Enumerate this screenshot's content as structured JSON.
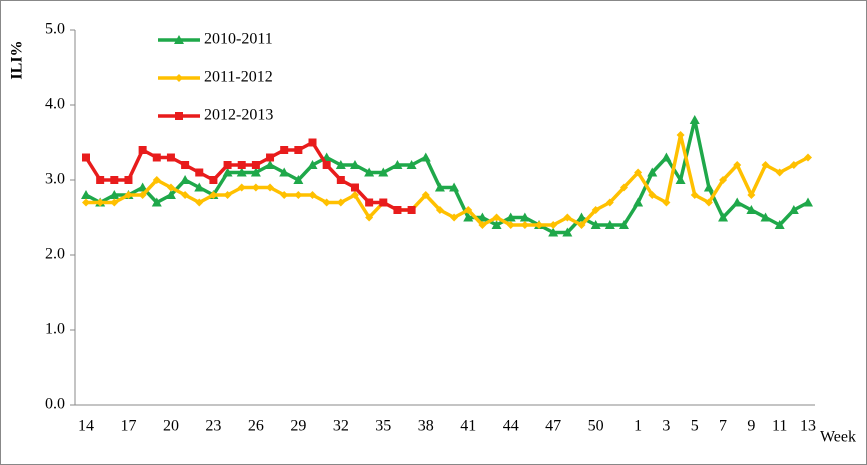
{
  "chart_data": {
    "type": "line",
    "y_label": "ILI%",
    "x_label": "Week",
    "categories": [
      "14",
      null,
      null,
      "17",
      null,
      null,
      "20",
      null,
      null,
      "23",
      null,
      null,
      "26",
      null,
      null,
      "29",
      null,
      null,
      "32",
      null,
      null,
      "35",
      null,
      null,
      "38",
      null,
      null,
      "41",
      null,
      null,
      "44",
      null,
      null,
      "47",
      null,
      null,
      "50",
      null,
      null,
      "1",
      null,
      "3",
      null,
      "5",
      null,
      "7",
      null,
      "9",
      null,
      "11",
      null,
      "13"
    ],
    "ylim": [
      0,
      5
    ],
    "yticks": [
      {
        "value": 0,
        "label": "0.0"
      },
      {
        "value": 1,
        "label": "1.0"
      },
      {
        "value": 2,
        "label": "2.0"
      },
      {
        "value": 3,
        "label": "3.0"
      },
      {
        "value": 4,
        "label": "4.0"
      },
      {
        "value": 5,
        "label": "5.0"
      }
    ],
    "series": [
      {
        "name": "2010-2011",
        "color": "#1fa84a",
        "marker": "triangle",
        "values": [
          2.8,
          2.7,
          2.8,
          2.8,
          2.9,
          2.7,
          2.8,
          3.0,
          2.9,
          2.8,
          3.1,
          3.1,
          3.1,
          3.2,
          3.1,
          3.0,
          3.2,
          3.3,
          3.2,
          3.2,
          3.1,
          3.1,
          3.2,
          3.2,
          3.3,
          2.9,
          2.9,
          2.5,
          2.5,
          2.4,
          2.5,
          2.5,
          2.4,
          2.3,
          2.3,
          2.5,
          2.4,
          2.4,
          2.4,
          2.7,
          3.1,
          3.3,
          3.0,
          3.8,
          2.9,
          2.5,
          2.7,
          2.6,
          2.5,
          2.4,
          2.6,
          2.7
        ]
      },
      {
        "name": "2011-2012",
        "color": "#ffc000",
        "marker": "diamond",
        "values": [
          2.7,
          2.7,
          2.7,
          2.8,
          2.8,
          3.0,
          2.9,
          2.8,
          2.7,
          2.8,
          2.8,
          2.9,
          2.9,
          2.9,
          2.8,
          2.8,
          2.8,
          2.7,
          2.7,
          2.8,
          2.5,
          2.7,
          2.6,
          2.6,
          2.8,
          2.6,
          2.5,
          2.6,
          2.4,
          2.5,
          2.4,
          2.4,
          2.4,
          2.4,
          2.5,
          2.4,
          2.6,
          2.7,
          2.9,
          3.1,
          2.8,
          2.7,
          3.6,
          2.8,
          2.7,
          3.0,
          3.2,
          2.8,
          3.2,
          3.1,
          3.2,
          3.3
        ]
      },
      {
        "name": "2012-2013",
        "color": "#e81c1c",
        "marker": "square",
        "values": [
          3.3,
          3.0,
          3.0,
          3.0,
          3.4,
          3.3,
          3.3,
          3.2,
          3.1,
          3.0,
          3.2,
          3.2,
          3.2,
          3.3,
          3.4,
          3.4,
          3.5,
          3.2,
          3.0,
          2.9,
          2.7,
          2.7,
          2.6,
          2.6,
          null,
          null,
          null,
          null,
          null,
          null,
          null,
          null,
          null,
          null,
          null,
          null,
          null,
          null,
          null,
          null,
          null,
          null,
          null,
          null,
          null,
          null,
          null,
          null,
          null,
          null,
          null,
          null
        ]
      }
    ]
  }
}
